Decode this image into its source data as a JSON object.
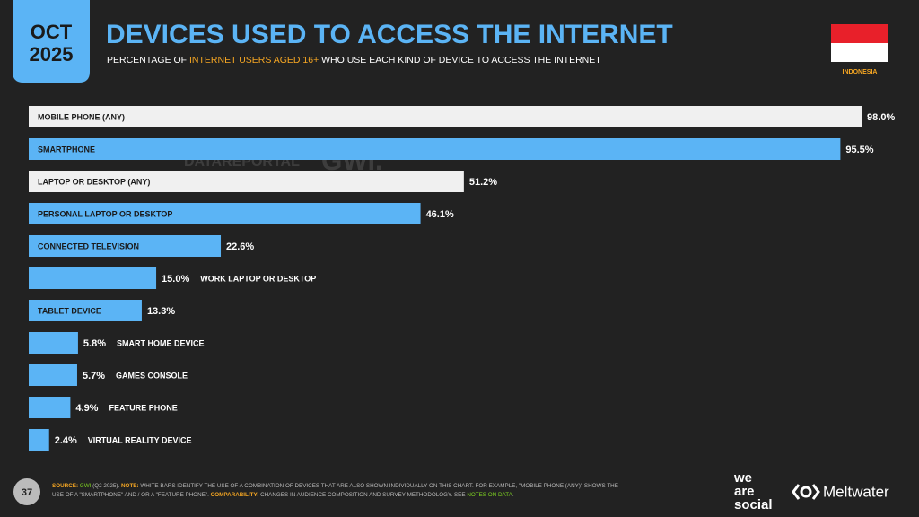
{
  "header": {
    "month": "OCT",
    "year": "2025",
    "title": "DEVICES USED TO ACCESS THE INTERNET",
    "subtitle": [
      {
        "text": "PERCENTAGE OF ",
        "color": "#ffffff"
      },
      {
        "text": "INTERNET USERS AGED 16+",
        "color": "#f5a623"
      },
      {
        "text": " WHO USE EACH KIND OF DEVICE TO ACCESS THE INTERNET",
        "color": "#ffffff"
      }
    ],
    "country": "INDONESIA"
  },
  "watermark": {
    "left": "DATAREPORTAL",
    "right": "GWI."
  },
  "chart_data": {
    "type": "bar",
    "orientation": "horizontal",
    "categories": [
      "MOBILE PHONE (ANY)",
      "SMARTPHONE",
      "LAPTOP OR DESKTOP (ANY)",
      "PERSONAL LAPTOP OR DESKTOP",
      "CONNECTED TELEVISION",
      "WORK LAPTOP OR DESKTOP",
      "TABLET DEVICE",
      "SMART HOME DEVICE",
      "GAMES CONSOLE",
      "FEATURE PHONE",
      "VIRTUAL REALITY DEVICE"
    ],
    "values": [
      98.0,
      95.5,
      51.2,
      46.1,
      22.6,
      15.0,
      13.3,
      5.8,
      5.7,
      4.9,
      2.4
    ],
    "value_labels": [
      "98.0%",
      "95.5%",
      "51.2%",
      "46.1%",
      "22.6%",
      "15.0%",
      "13.3%",
      "5.8%",
      "5.7%",
      "4.9%",
      "2.4%"
    ],
    "colors": [
      "#f0f0f0",
      "#5bb4f5",
      "#f0f0f0",
      "#5bb4f5",
      "#5bb4f5",
      "#5bb4f5",
      "#5bb4f5",
      "#5bb4f5",
      "#5bb4f5",
      "#5bb4f5",
      "#5bb4f5"
    ],
    "category_label_positions": [
      "inside",
      "inside",
      "inside",
      "inside",
      "inside",
      "outside",
      "inside",
      "outside",
      "outside",
      "outside",
      "outside"
    ],
    "xlim": [
      0,
      100
    ]
  },
  "footer": {
    "page": "37",
    "lines": [
      [
        {
          "text": "SOURCE: ",
          "color": "#f5a623"
        },
        {
          "text": "GWI",
          "color": "#7ed321"
        },
        {
          "text": " (Q2 2025). ",
          "color": "#bbbbbb"
        },
        {
          "text": "NOTE: ",
          "color": "#f5a623"
        },
        {
          "text": "WHITE BARS IDENTIFY THE USE OF A COMBINATION OF DEVICES THAT ARE ALSO SHOWN INDIVIDUALLY ON THIS CHART. FOR EXAMPLE, \"MOBILE PHONE (ANY)\" SHOWS THE",
          "color": "#bbbbbb"
        }
      ],
      [
        {
          "text": "USE OF A \"SMARTPHONE\" AND / OR A \"FEATURE PHONE\". ",
          "color": "#bbbbbb"
        },
        {
          "text": "COMPARABILITY: ",
          "color": "#f5a623"
        },
        {
          "text": "CHANGES IN AUDIENCE COMPOSITION AND SURVEY METHODOLOGY. SEE ",
          "color": "#bbbbbb"
        },
        {
          "text": "NOTES ON DATA",
          "color": "#7ed321"
        },
        {
          "text": ".",
          "color": "#bbbbbb"
        }
      ]
    ],
    "logo_1": [
      "we",
      "are",
      "social"
    ],
    "logo_2": "Meltwater"
  }
}
